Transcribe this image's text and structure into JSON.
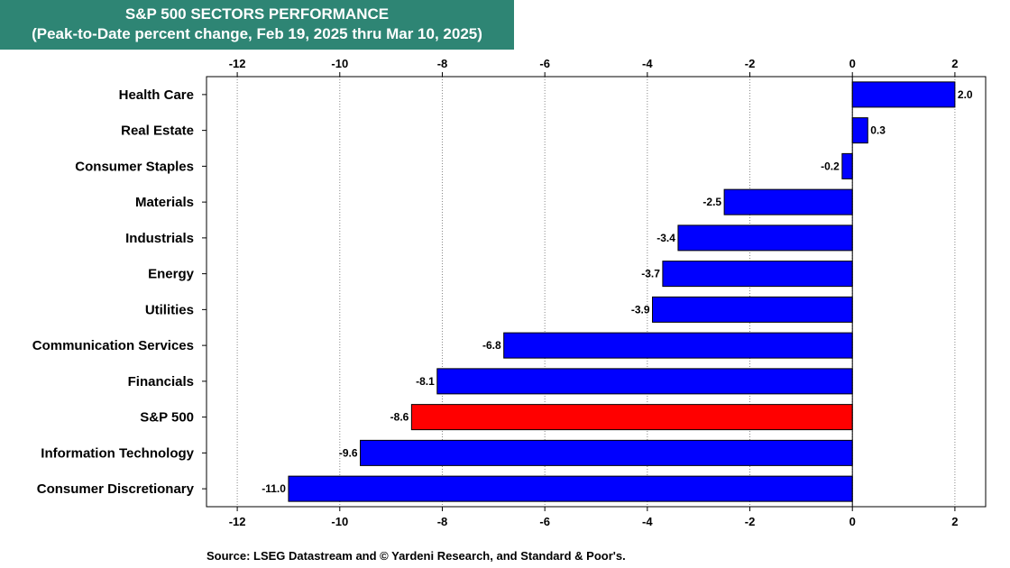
{
  "header": {
    "title": "S&P 500 SECTORS PERFORMANCE",
    "subtitle": "(Peak-to-Date percent change, Feb 19, 2025 thru Mar 10, 2025)"
  },
  "footer": {
    "source": "Source: LSEG Datastream and © Yardeni Research, and Standard & Poor's."
  },
  "colors": {
    "title_background": "#2e8574",
    "bar": "#0000ff",
    "highlight_bar": "#ff0000",
    "grid": "#888888"
  },
  "chart_data": {
    "type": "bar",
    "orientation": "horizontal",
    "title": "S&P 500 SECTORS PERFORMANCE",
    "subtitle": "(Peak-to-Date percent change, Feb 19, 2025 thru Mar 10, 2025)",
    "categories": [
      "Health Care",
      "Real Estate",
      "Consumer Staples",
      "Materials",
      "Industrials",
      "Energy",
      "Utilities",
      "Communication Services",
      "Financials",
      "S&P 500",
      "Information Technology",
      "Consumer Discretionary"
    ],
    "values": [
      2.0,
      0.3,
      -0.2,
      -2.5,
      -3.4,
      -3.7,
      -3.9,
      -6.8,
      -8.1,
      -8.6,
      -9.6,
      -11.0
    ],
    "value_labels": [
      "2.0",
      "0.3",
      "-0.2",
      "-2.5",
      "-3.4",
      "-3.7",
      "-3.9",
      "-6.8",
      "-8.1",
      "-8.6",
      "-9.6",
      "-11.0"
    ],
    "highlight_category": "S&P 500",
    "xlim": [
      -12.6,
      2.6
    ],
    "x_ticks": [
      -12,
      -10,
      -8,
      -6,
      -4,
      -2,
      0,
      2
    ],
    "x_tick_labels": [
      "-12",
      "-10",
      "-8",
      "-6",
      "-4",
      "-2",
      "0",
      "2"
    ],
    "x_ticks_top_and_bottom": true,
    "grid": "vertical dotted"
  }
}
